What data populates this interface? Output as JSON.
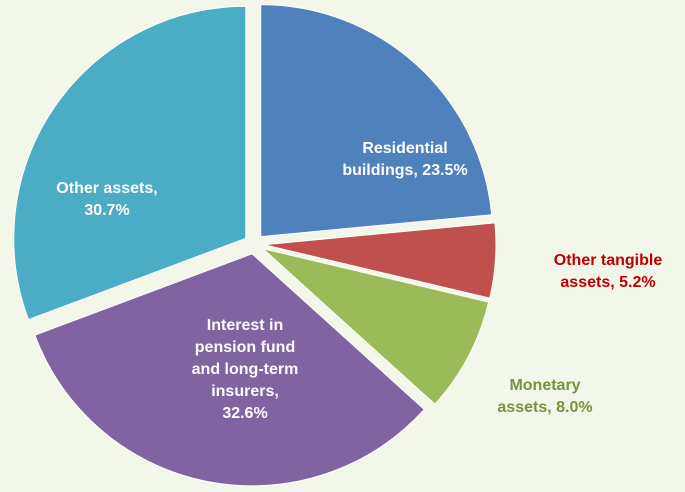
{
  "chart_data": {
    "type": "pie",
    "values": [
      23.5,
      5.2,
      8.0,
      32.6,
      30.7
    ],
    "value_labels": [
      "Residential buildings, 23.5%",
      "Other tangible assets, 5.2%",
      "Monetary assets, 8.0%",
      "Interest in pension fund and long-term insurers, 32.6%",
      "Other assets, 30.7%"
    ],
    "colors": [
      "#4f81bd",
      "#c0504d",
      "#9bbb59",
      "#8064a2",
      "#4bacc6"
    ],
    "label_colors": [
      "#ffffff",
      "#c00000",
      "#77933c",
      "#ffffff",
      "#ffffff"
    ]
  }
}
